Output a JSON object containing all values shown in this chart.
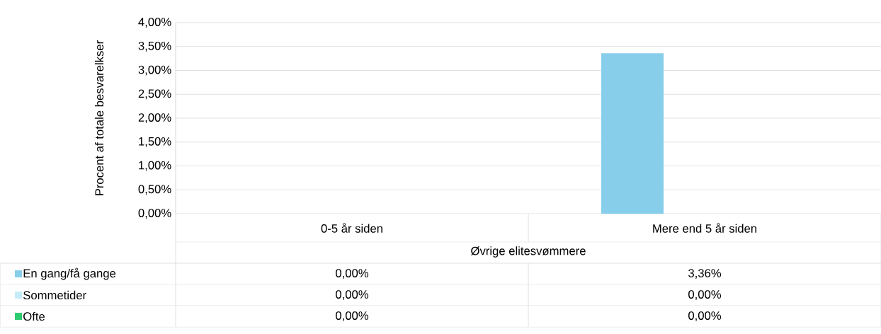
{
  "chart_data": {
    "type": "bar",
    "ylabel": "Procent af totale besvarelkser",
    "xlabel": "Øvrige elitesvømmere",
    "categories": [
      "0-5 år siden",
      "Mere end 5 år siden"
    ],
    "series": [
      {
        "name": "En gang/få gange",
        "color": "#87ceeb",
        "values": [
          0,
          3.36
        ],
        "value_labels": [
          "0,00%",
          "3,36%"
        ]
      },
      {
        "name": "Sommetider",
        "color": "#c6ecf9",
        "values": [
          0,
          0
        ],
        "value_labels": [
          "0,00%",
          "0,00%"
        ]
      },
      {
        "name": "Ofte",
        "color": "#2ecc71",
        "values": [
          0,
          0
        ],
        "value_labels": [
          "0,00%",
          "0,00%"
        ]
      }
    ],
    "ylim": [
      0,
      4
    ],
    "yticks": [
      {
        "value": 0,
        "label": "0,00%"
      },
      {
        "value": 0.5,
        "label": "0,50%"
      },
      {
        "value": 1,
        "label": "1,00%"
      },
      {
        "value": 1.5,
        "label": "1,50%"
      },
      {
        "value": 2,
        "label": "2,00%"
      },
      {
        "value": 2.5,
        "label": "2,50%"
      },
      {
        "value": 3,
        "label": "3,00%"
      },
      {
        "value": 3.5,
        "label": "3,50%"
      },
      {
        "value": 4,
        "label": "4,00%"
      }
    ],
    "grid": "y",
    "legend": "bottom left"
  }
}
